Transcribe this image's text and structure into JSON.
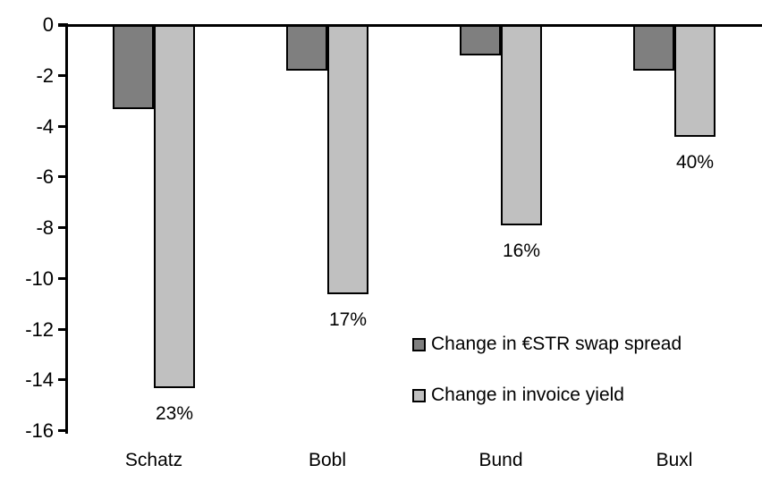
{
  "chart_data": {
    "type": "bar",
    "orientation": "vertical",
    "categories": [
      "Schatz",
      "Bobl",
      "Bund",
      "Buxl"
    ],
    "series": [
      {
        "name": "Change in €STR swap spread",
        "color": "#7f7f7f",
        "values": [
          -3.3,
          -1.8,
          -1.2,
          -1.8
        ]
      },
      {
        "name": "Change in invoice yield",
        "color": "#c0c0c0",
        "values": [
          -14.3,
          -10.6,
          -7.9,
          -4.4
        ],
        "value_labels": [
          "23%",
          "17%",
          "16%",
          "40%"
        ]
      }
    ],
    "title": "",
    "xlabel": "",
    "ylabel": "",
    "ylim": [
      -16,
      0
    ],
    "yticks": [
      0,
      -2,
      -4,
      -6,
      -8,
      -10,
      -12,
      -14,
      -16
    ],
    "grid": false,
    "legend_position": "inside-bottom-right",
    "bar_border_color": "#000000",
    "axis_color": "#000000",
    "text_color": "#000000",
    "background_color": "#ffffff"
  }
}
